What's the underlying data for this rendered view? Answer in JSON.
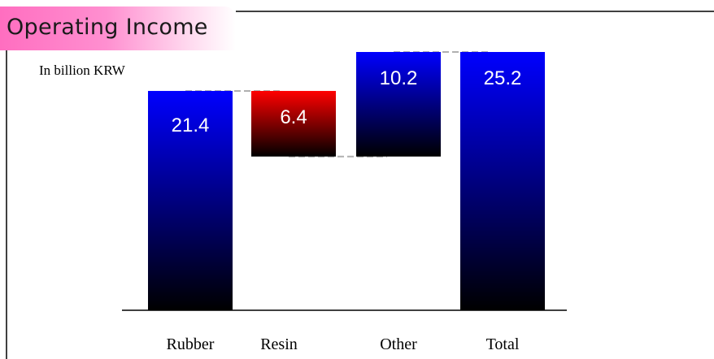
{
  "title": "Operating Income",
  "subtitle": "In billion KRW",
  "chart_data": {
    "type": "waterfall",
    "categories": [
      "Rubber",
      "Resin",
      "Other",
      "Total"
    ],
    "values": [
      21.4,
      -6.4,
      10.2,
      25.2
    ],
    "value_labels": [
      "21.4",
      "6.4",
      "10.2",
      "25.2"
    ],
    "kinds": [
      "increase",
      "decrease",
      "increase",
      "total"
    ],
    "colors": {
      "increase": "#0000ff",
      "decrease": "#ff0000",
      "total": "#0000ff",
      "bar_bottom": "#000000",
      "connector": "#b0b0b0"
    },
    "ylim": [
      0,
      25.2
    ],
    "grid": false,
    "legend": "none"
  }
}
